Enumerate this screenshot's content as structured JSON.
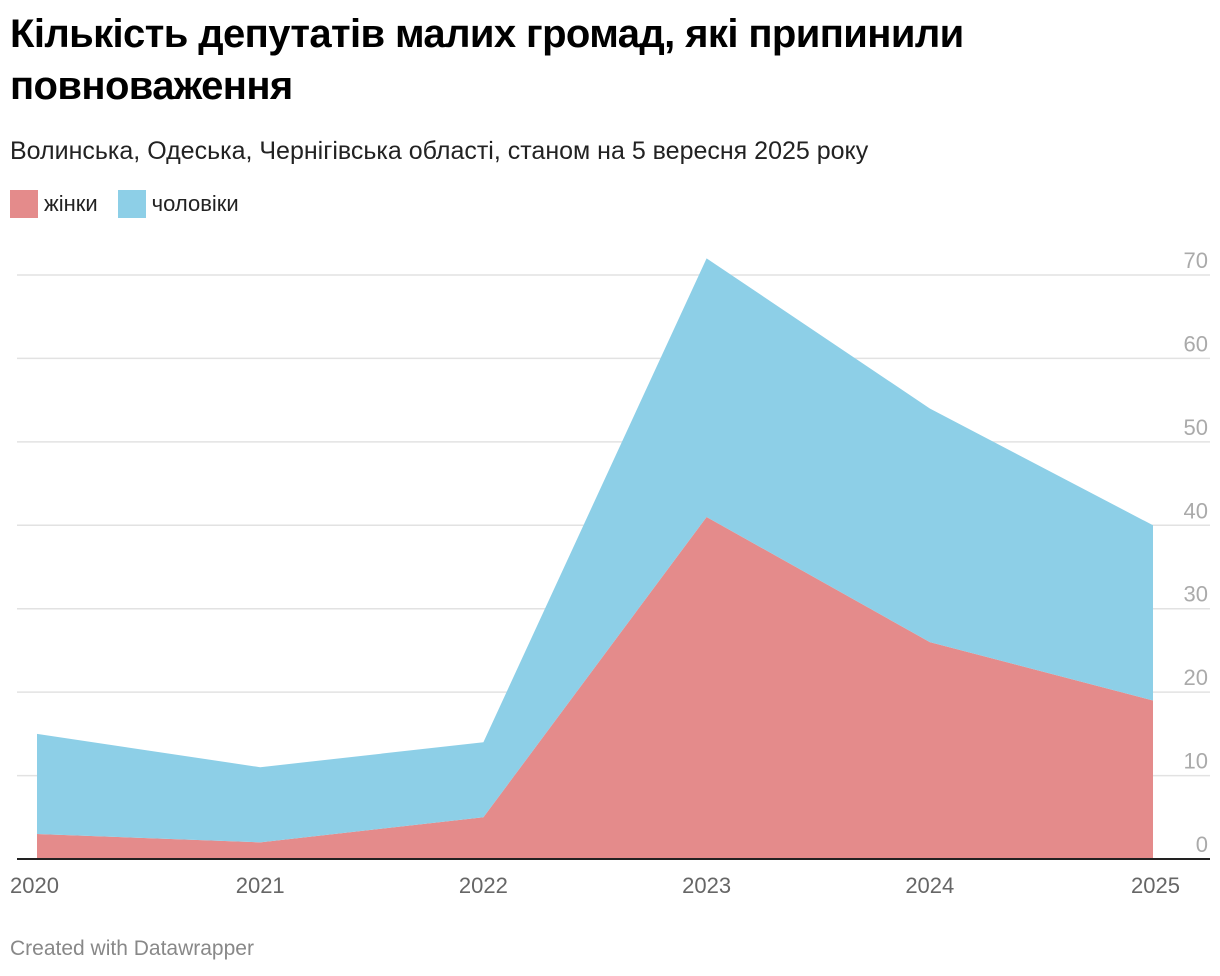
{
  "chart_data": {
    "type": "area",
    "stacked": true,
    "title": "Кількість депутатів малих громад, які припинили повноваження",
    "subtitle": "Волинська, Одеська, Чернігівська області, станом на 5 вересня 2025 року",
    "xlabel": "",
    "ylabel": "",
    "x": [
      "2020",
      "2021",
      "2022",
      "2023",
      "2024",
      "2025"
    ],
    "series": [
      {
        "name": "жінки",
        "color": "#e48b8b",
        "values": [
          3,
          2,
          5,
          41,
          26,
          19
        ]
      },
      {
        "name": "чоловіки",
        "color": "#8dcfe7",
        "values": [
          12,
          9,
          9,
          31,
          28,
          21
        ]
      }
    ],
    "ylim": [
      0,
      70
    ],
    "yticks": [
      0,
      10,
      20,
      30,
      40,
      50,
      60,
      70
    ],
    "grid": true,
    "y_axis_side": "right",
    "legend_position": "top-left"
  },
  "footer": {
    "credit": "Created with Datawrapper"
  }
}
